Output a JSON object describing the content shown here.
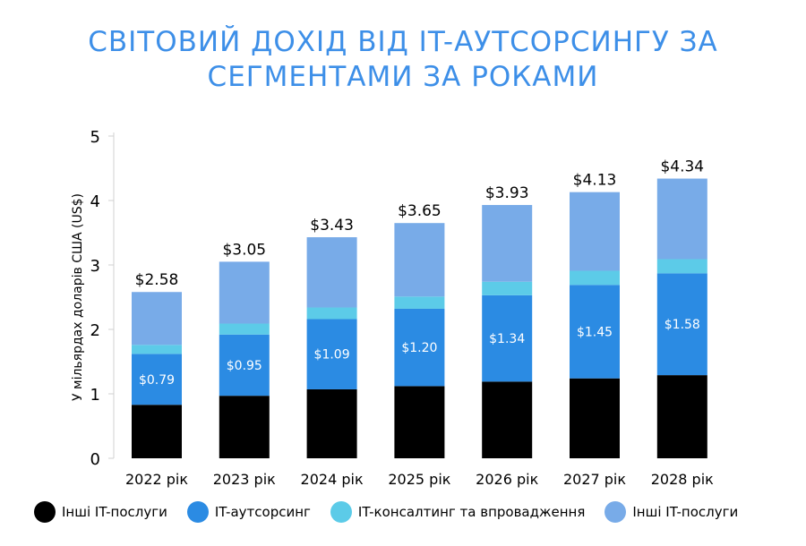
{
  "title": {
    "line1": "СВІТОВИЙ ДОХІД ВІД IT-АУТСОРСИНГУ ЗА",
    "line2": "СЕГМЕНТАМИ ЗА РОКАМИ"
  },
  "chart_data": {
    "type": "bar",
    "stacked": true,
    "title": "СВІТОВИЙ ДОХІД ВІД IT-АУТСОРСИНГУ ЗА СЕГМЕНТАМИ ЗА РОКАМИ",
    "ylabel": "У мільярдах доларів США (US$)",
    "xlabel": "",
    "ylim": [
      0,
      5
    ],
    "yticks": [
      0,
      1,
      2,
      3,
      4,
      5
    ],
    "grid": false,
    "legend_position": "bottom",
    "categories": [
      "2022 рік",
      "2023 рік",
      "2024 рік",
      "2025 рік",
      "2026 рік",
      "2027 рік",
      "2028 рік"
    ],
    "totals": [
      2.58,
      3.05,
      3.43,
      3.65,
      3.93,
      4.13,
      4.34
    ],
    "total_labels": [
      "$2.58",
      "$3.05",
      "$3.43",
      "$3.65",
      "$3.93",
      "$4.13",
      "$4.34"
    ],
    "series": [
      {
        "name": "Інші IT-послуги",
        "color": "#000000",
        "values": [
          0.83,
          0.97,
          1.07,
          1.12,
          1.19,
          1.24,
          1.29
        ]
      },
      {
        "name": "IT-аутсорсинг",
        "color": "#2b8be3",
        "values": [
          0.79,
          0.95,
          1.09,
          1.2,
          1.34,
          1.45,
          1.58
        ],
        "labels": [
          "$0.79",
          "$0.95",
          "$1.09",
          "$1.20",
          "$1.34",
          "$1.45",
          "$1.58"
        ]
      },
      {
        "name": "IT-консалтинг та впровадження",
        "color": "#5ccbe8",
        "values": [
          0.14,
          0.17,
          0.18,
          0.19,
          0.21,
          0.22,
          0.22
        ]
      },
      {
        "name": "Інші IT-послуги",
        "color": "#78abe8",
        "values": [
          0.82,
          0.96,
          1.09,
          1.14,
          1.19,
          1.22,
          1.25
        ]
      }
    ]
  }
}
